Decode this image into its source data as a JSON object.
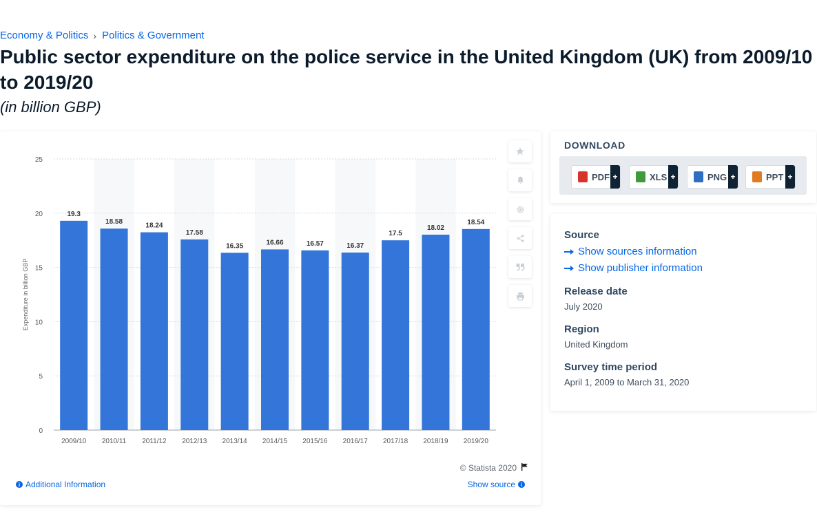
{
  "breadcrumb": {
    "item1": "Economy & Politics",
    "sep": "›",
    "item2": "Politics & Government"
  },
  "page": {
    "title": "Public sector expenditure on the police service in the United Kingdom (UK) from 2009/10 to 2019/20",
    "subtitle": "(in billion GBP)"
  },
  "chart_data": {
    "type": "bar",
    "title": "",
    "xlabel": "",
    "ylabel": "Expenditure in billion GBP",
    "categories": [
      "2009/10",
      "2010/11",
      "2011/12",
      "2012/13",
      "2013/14",
      "2014/15",
      "2015/16",
      "2016/17",
      "2017/18",
      "2018/19",
      "2019/20"
    ],
    "values": [
      19.3,
      18.58,
      18.24,
      17.58,
      16.35,
      16.66,
      16.57,
      16.37,
      17.5,
      18.02,
      18.54
    ],
    "value_labels": [
      "19.3",
      "18.58",
      "18.24",
      "17.58",
      "16.35",
      "16.66",
      "16.57",
      "16.37",
      "17.5",
      "18.02",
      "18.54"
    ],
    "ylim": [
      0,
      25
    ],
    "yticks": [
      0,
      5,
      10,
      15,
      20,
      25
    ],
    "grid": true,
    "bar_color": "#3475d9"
  },
  "chart_footer": {
    "copyright": "© Statista 2020",
    "additional_info": "Additional Information",
    "show_source": "Show source"
  },
  "tools": [
    {
      "icon": "star-icon"
    },
    {
      "icon": "bell-icon"
    },
    {
      "icon": "gear-icon"
    },
    {
      "icon": "share-icon"
    },
    {
      "icon": "quote-icon"
    },
    {
      "icon": "print-icon"
    }
  ],
  "download": {
    "title": "DOWNLOAD",
    "buttons": [
      {
        "label": "PDF",
        "color": "#d9342b"
      },
      {
        "label": "XLS",
        "color": "#3e9a3a"
      },
      {
        "label": "PNG",
        "color": "#2d6fc2"
      },
      {
        "label": "PPT",
        "color": "#e07b22"
      }
    ],
    "plus": "+"
  },
  "source": {
    "source_heading": "Source",
    "show_sources": "Show sources information",
    "show_publisher": "Show publisher information",
    "release_heading": "Release date",
    "release_value": "July 2020",
    "region_heading": "Region",
    "region_value": "United Kingdom",
    "survey_heading": "Survey time period",
    "survey_value": "April 1, 2009 to March 31, 2020"
  }
}
